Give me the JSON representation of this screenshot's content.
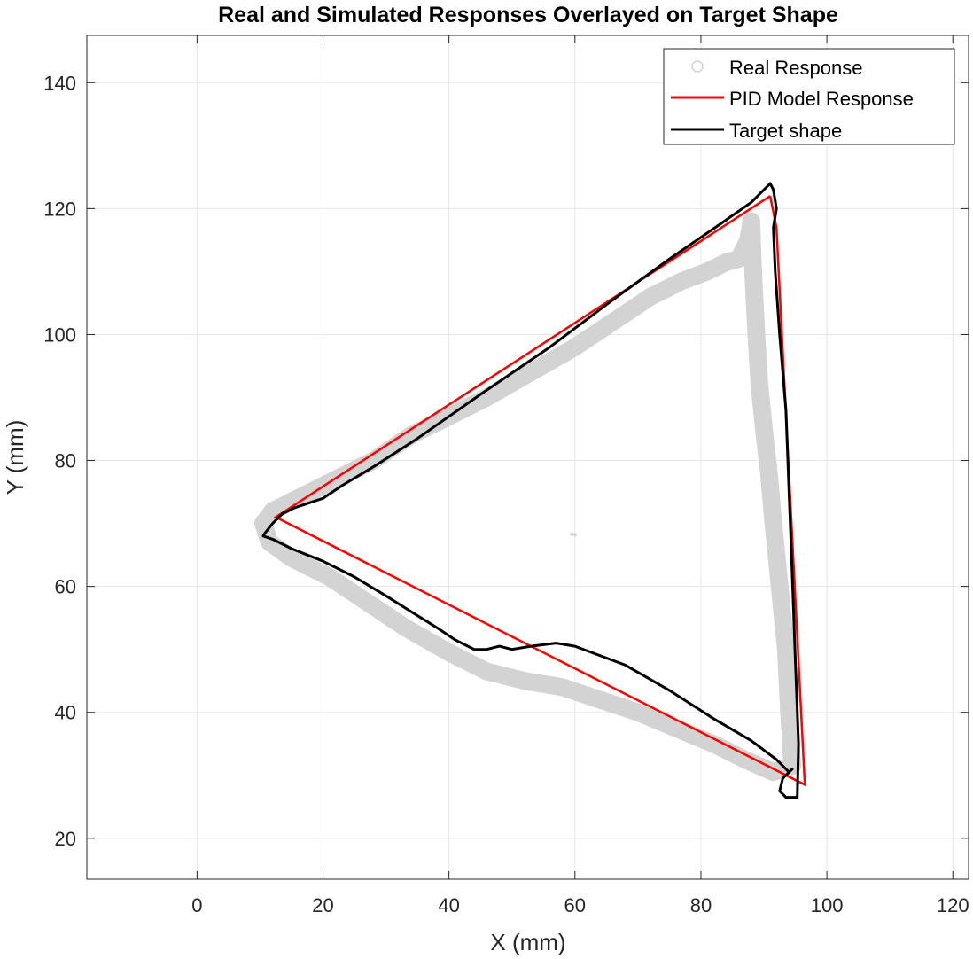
{
  "chart_data": {
    "type": "line",
    "title": "Real and Simulated Responses Overlayed on Target Shape",
    "xlabel": "X (mm)",
    "ylabel": "Y (mm)",
    "xlim": [
      -17.5,
      122.5
    ],
    "ylim": [
      13.5,
      147.5
    ],
    "xticks": [
      0,
      20,
      40,
      60,
      80,
      100,
      120
    ],
    "yticks": [
      20,
      40,
      60,
      80,
      100,
      120,
      140
    ],
    "grid": true,
    "legend_position": "top-right",
    "colors": {
      "real": "#d3d3d3",
      "pid": "#ff0000",
      "target": "#000000",
      "grid": "#e6e6e6",
      "axis": "#262626"
    },
    "series": [
      {
        "name": "Real Response",
        "style": "markers",
        "x": [
          88.0,
          87.5,
          86.0,
          84.0,
          81.0,
          77.0,
          72.0,
          66.0,
          60.0,
          53.0,
          46.0,
          40.0,
          34.0,
          28.0,
          22.0,
          16.0,
          12.0,
          10.5,
          11.5,
          15.0,
          21.0,
          27.0,
          33.0,
          40.0,
          46.0,
          52.0,
          58.0,
          64.0,
          70.0,
          76.0,
          82.0,
          87.0,
          91.5,
          94.5,
          94.0,
          93.5,
          92.5,
          91.5,
          90.8,
          90.0,
          89.3,
          88.8,
          88.3,
          88.0
        ],
        "y": [
          118.0,
          115.0,
          112.0,
          111.5,
          110.0,
          108.5,
          106.0,
          102.0,
          98.0,
          94.0,
          90.0,
          87.0,
          84.0,
          80.0,
          77.0,
          74.0,
          72.0,
          70.0,
          67.0,
          64.5,
          61.5,
          57.5,
          53.5,
          49.5,
          46.5,
          45.0,
          44.0,
          42.0,
          40.0,
          37.5,
          35.0,
          32.5,
          30.5,
          31.5,
          40.0,
          50.0,
          60.0,
          70.0,
          78.0,
          85.0,
          92.0,
          100.0,
          110.0,
          118.0
        ]
      },
      {
        "name": "PID Model Response",
        "style": "line",
        "x": [
          91.0,
          92.0,
          96.5,
          12.5,
          91.0
        ],
        "y": [
          122.0,
          117.0,
          28.5,
          71.0,
          122.0
        ]
      },
      {
        "name": "Target shape",
        "style": "line",
        "x": [
          91.0,
          91.5,
          92.0,
          91.5,
          91.8,
          92.5,
          93.5,
          94.0,
          94.5,
          95.0,
          95.5,
          95.3,
          93.5,
          92.5,
          93.0,
          94.5,
          94.0,
          92.0,
          88.0,
          82.0,
          75.0,
          68.0,
          60.0,
          57.0,
          53.0,
          50.0,
          48.0,
          46.0,
          44.0,
          41.0,
          38.0,
          34.0,
          30.0,
          25.0,
          20.0,
          15.0,
          12.0,
          10.5,
          10.8,
          12.0,
          13.5,
          15.5,
          17.0,
          20.0,
          23.0,
          28.0,
          35.0,
          45.0,
          56.0,
          66.0,
          75.0,
          83.0,
          88.0,
          91.0
        ],
        "y": [
          124.0,
          123.0,
          120.0,
          117.0,
          110.0,
          100.0,
          88.0,
          75.0,
          62.0,
          48.0,
          35.0,
          26.5,
          26.5,
          27.5,
          29.5,
          31.0,
          30.5,
          32.5,
          35.5,
          39.0,
          43.5,
          47.5,
          50.5,
          51.0,
          50.5,
          50.0,
          50.5,
          50.0,
          50.0,
          51.5,
          53.5,
          56.0,
          58.5,
          61.5,
          64.0,
          66.0,
          67.5,
          68.0,
          68.5,
          70.0,
          71.5,
          72.5,
          73.0,
          74.0,
          76.0,
          79.0,
          83.5,
          90.5,
          98.0,
          105.5,
          112.0,
          117.5,
          121.0,
          124.0
        ]
      }
    ],
    "outliers": {
      "x": [
        60.0,
        59.5,
        92.5,
        93.0
      ],
      "y": [
        68.2,
        68.3,
        51.0,
        51.2
      ]
    }
  }
}
